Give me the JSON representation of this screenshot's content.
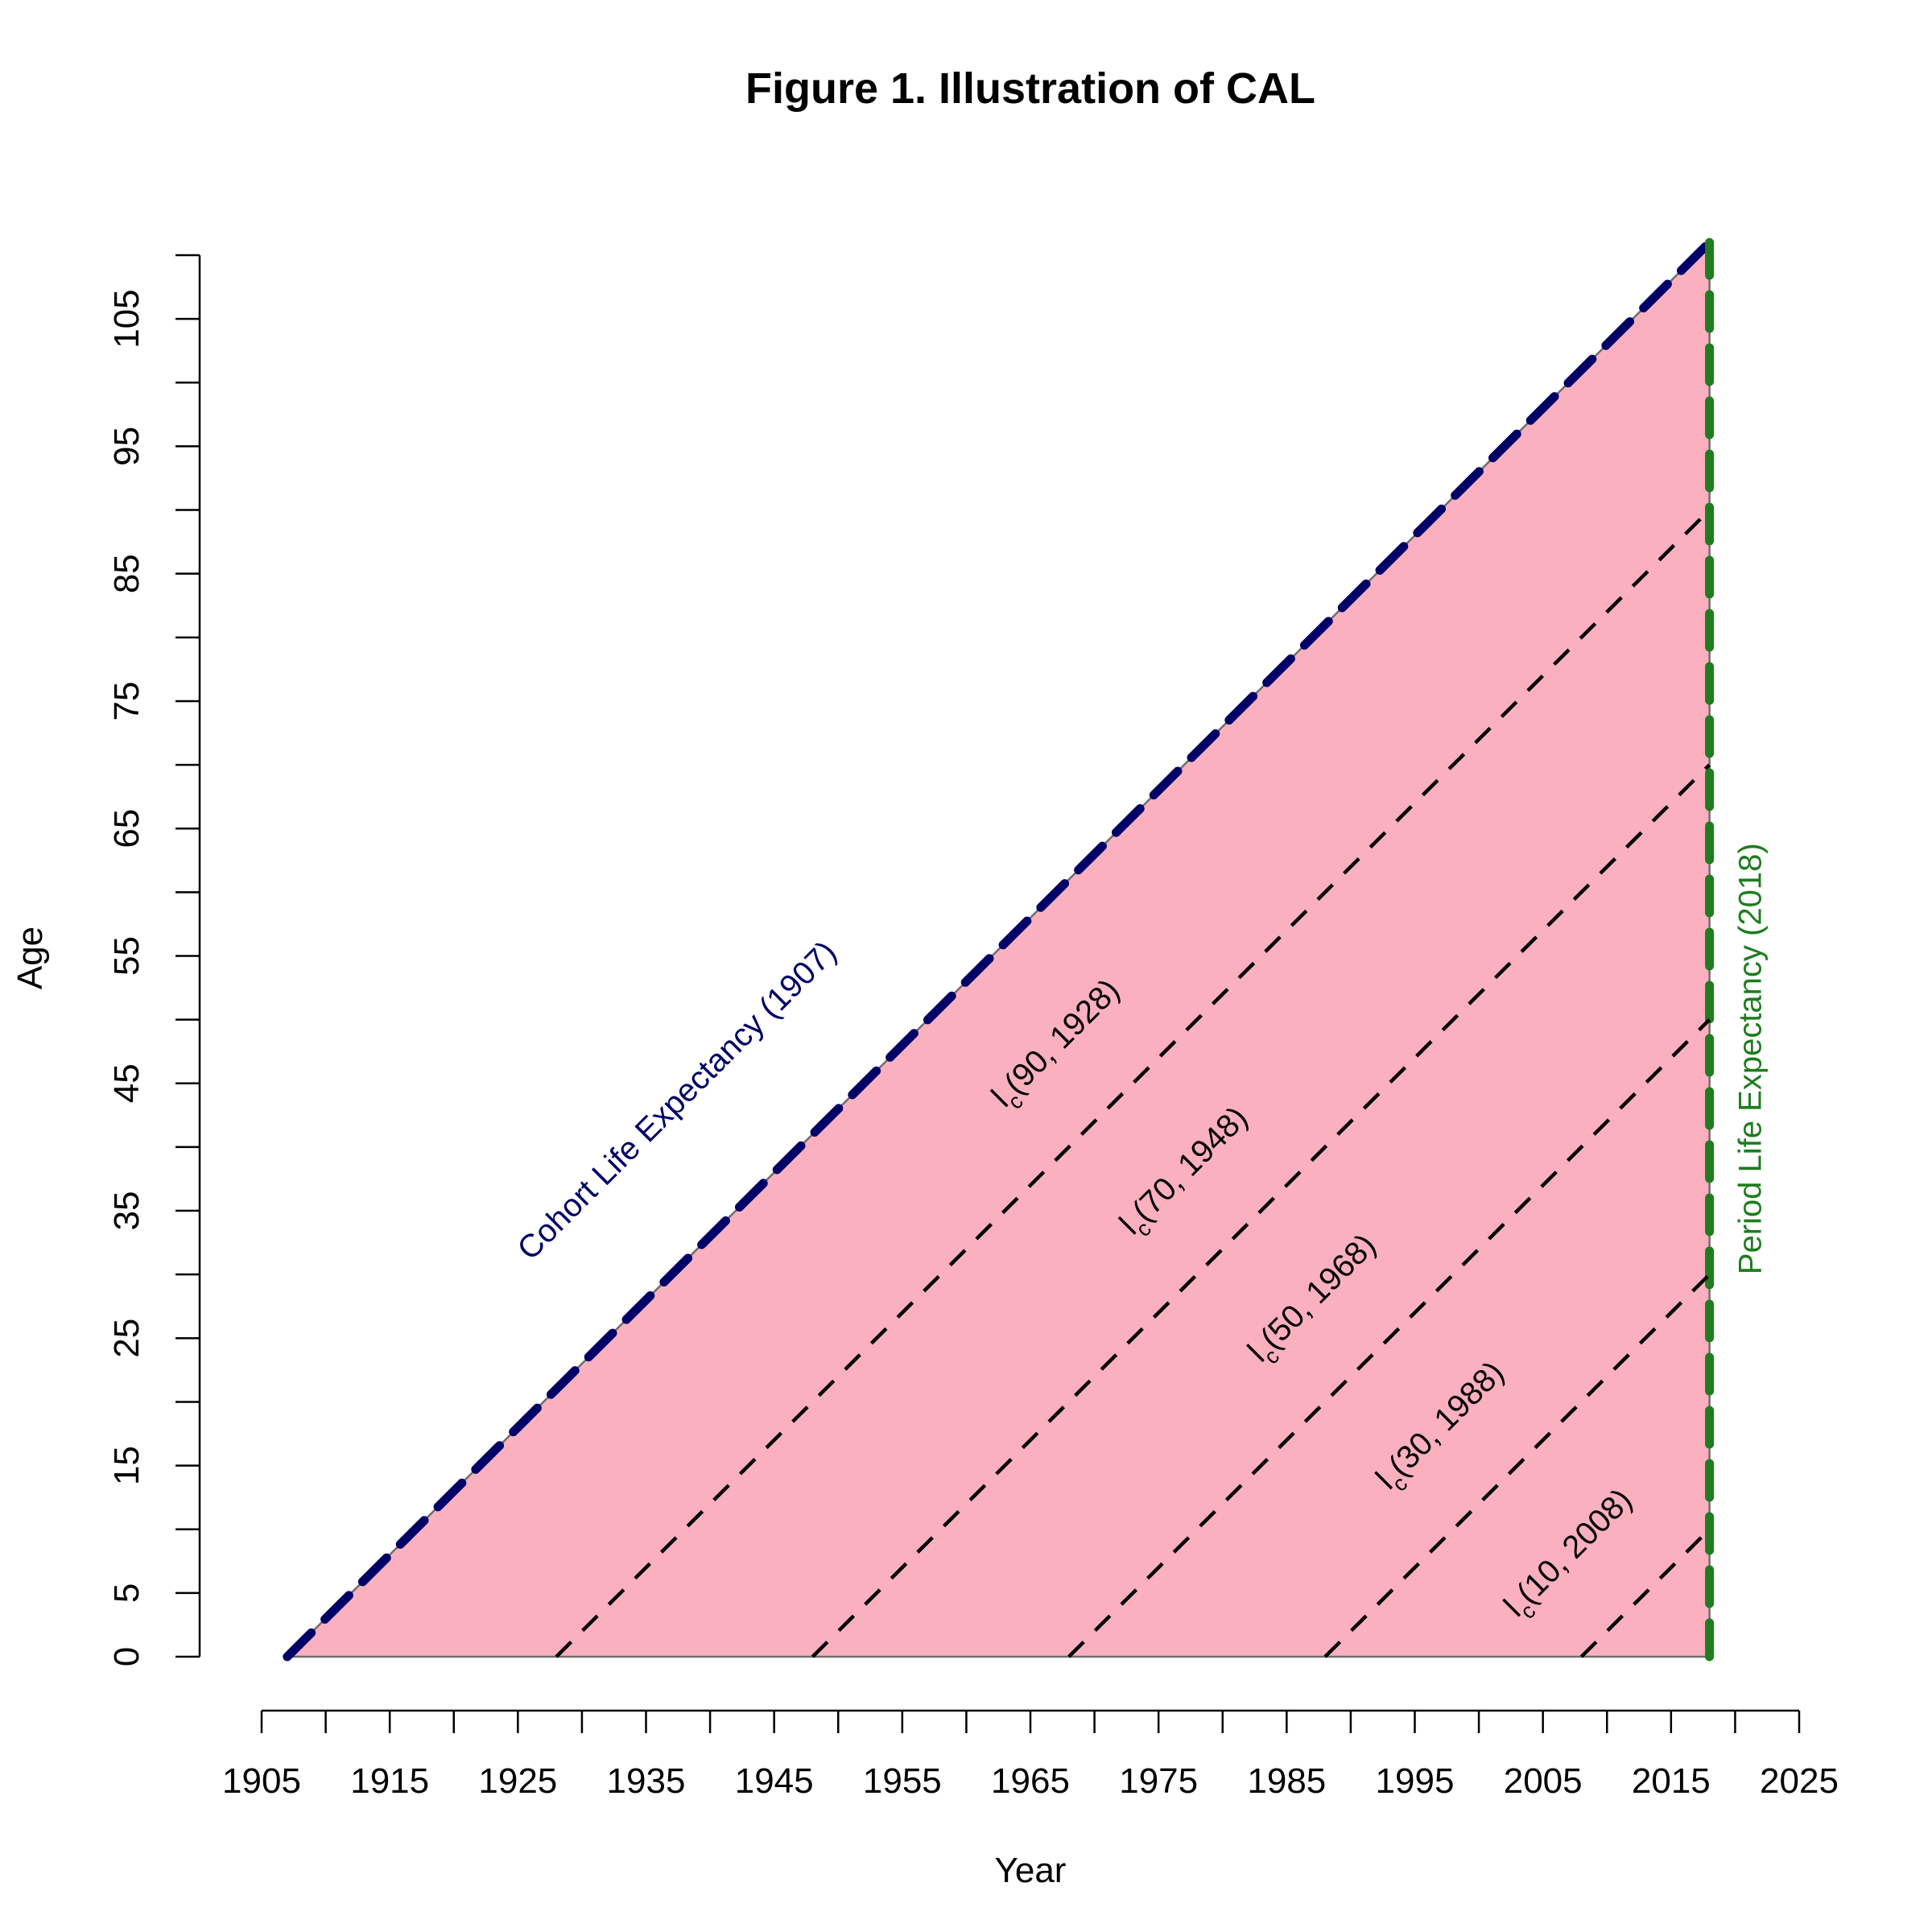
{
  "chart_data": {
    "type": "line",
    "title": "Figure 1. Illustration of CAL",
    "xlabel": "Year",
    "ylabel": "Age",
    "xlim": [
      1905,
      2025
    ],
    "ylim": [
      0,
      110
    ],
    "x_tick_labels": [
      "1905",
      "1915",
      "1925",
      "1935",
      "1945",
      "1955",
      "1965",
      "1975",
      "1985",
      "1995",
      "2005",
      "2015",
      "2025"
    ],
    "x_minor_step": 5,
    "y_tick_labels": [
      "0",
      "5",
      "15",
      "25",
      "35",
      "45",
      "55",
      "65",
      "75",
      "85",
      "95",
      "105"
    ],
    "y_minor_step": 5,
    "shaded_region": {
      "points": [
        [
          1907,
          0
        ],
        [
          2018,
          0
        ],
        [
          2018,
          111
        ],
        [
          1907,
          0
        ]
      ],
      "color": "#FBB0C0"
    },
    "series": [
      {
        "x": [
          1907,
          2018
        ],
        "y": [
          0,
          111
        ],
        "color": "#000066",
        "style": "long-dash"
      },
      {
        "x": [
          2018,
          2018
        ],
        "y": [
          0,
          111
        ],
        "color": "#1E7D1E",
        "style": "long-dash"
      },
      {
        "x": [
          1928,
          2018
        ],
        "y": [
          0,
          90
        ],
        "color": "#000000",
        "style": "dashed"
      },
      {
        "x": [
          1948,
          2018
        ],
        "y": [
          0,
          70
        ],
        "color": "#000000",
        "style": "dashed"
      },
      {
        "x": [
          1968,
          2018
        ],
        "y": [
          0,
          50
        ],
        "color": "#000000",
        "style": "dashed"
      },
      {
        "x": [
          1988,
          2018
        ],
        "y": [
          0,
          30
        ],
        "color": "#000000",
        "style": "dashed"
      },
      {
        "x": [
          2008,
          2018
        ],
        "y": [
          0,
          10
        ],
        "color": "#000000",
        "style": "dashed"
      }
    ],
    "annotations": [
      {
        "text": "Cohort Life Expectancy (1907)",
        "x": 1926,
        "y": 31,
        "angle": 45,
        "color": "#000066"
      },
      {
        "text": "Period Life Expectancy (2018)",
        "x": 2022,
        "y": 30,
        "angle": 90,
        "color": "#1E7D1E"
      },
      {
        "main": "l",
        "sub": "c",
        "rest": "(90, 1928)",
        "x": 1963,
        "y": 43,
        "angle": 45,
        "color": "#000000"
      },
      {
        "main": "l",
        "sub": "c",
        "rest": "(70, 1948)",
        "x": 1973,
        "y": 33,
        "angle": 45,
        "color": "#000000"
      },
      {
        "main": "l",
        "sub": "c",
        "rest": "(50, 1968)",
        "x": 1983,
        "y": 23,
        "angle": 45,
        "color": "#000000"
      },
      {
        "main": "l",
        "sub": "c",
        "rest": "(30, 1988)",
        "x": 1993,
        "y": 13,
        "angle": 45,
        "color": "#000000"
      },
      {
        "main": "l",
        "sub": "c",
        "rest": "(10, 2008)",
        "x": 2003,
        "y": 3,
        "angle": 45,
        "color": "#000000"
      }
    ]
  }
}
